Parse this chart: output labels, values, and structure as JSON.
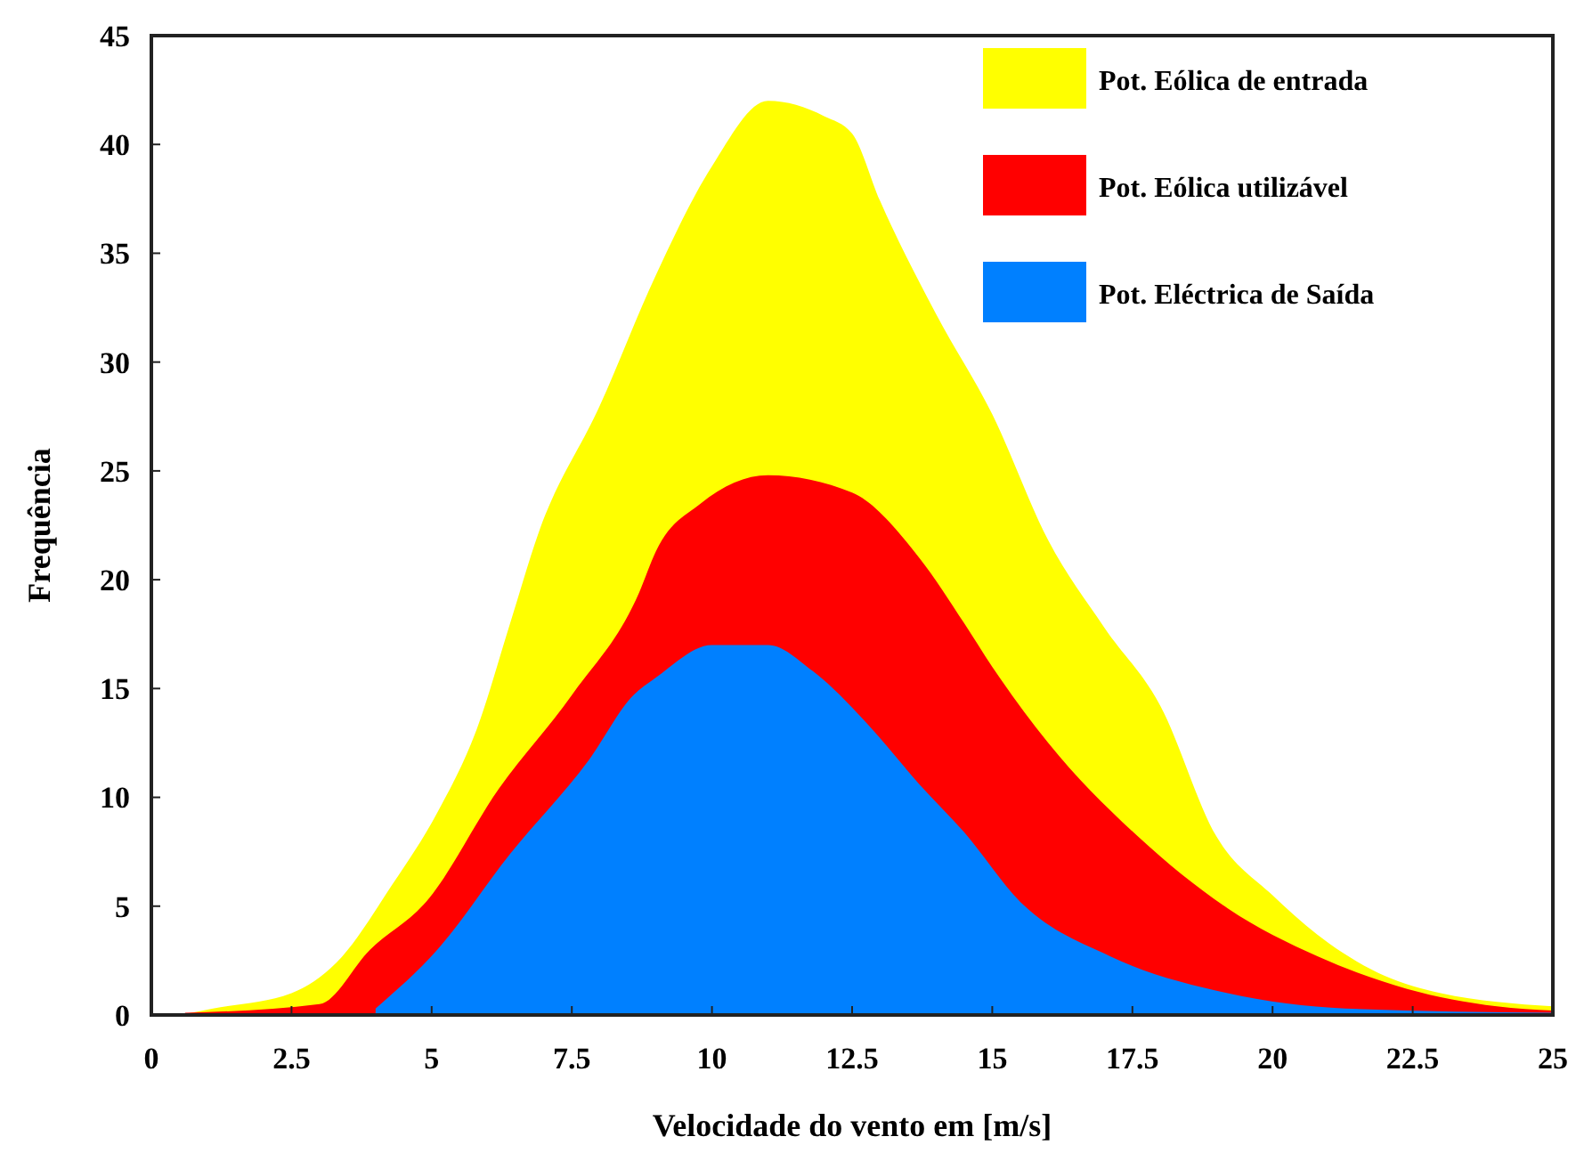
{
  "chart_data": {
    "type": "area",
    "xlabel": "Velocidade do vento em [m/s]",
    "ylabel": "Frequência",
    "xlim": [
      0,
      25
    ],
    "ylim": [
      0,
      45
    ],
    "xticks": [
      0,
      2.5,
      5,
      7.5,
      10,
      12.5,
      15,
      17.5,
      20,
      22.5,
      25
    ],
    "yticks": [
      0,
      5,
      10,
      15,
      20,
      25,
      30,
      35,
      40,
      45
    ],
    "grid": false,
    "legend": "top right",
    "series": [
      {
        "name": "Pot. Eólica de entrada",
        "color": "#ffff00",
        "x": [
          0.5,
          1.1,
          2.5,
          3.3,
          4.3,
          5.1,
          5.8,
          6.4,
          6.9,
          8,
          9,
          10,
          11,
          12,
          12.5,
          13,
          14,
          15,
          16,
          17,
          18,
          19,
          20,
          21,
          22,
          23,
          24,
          25
        ],
        "values": [
          0,
          0.3,
          1,
          2.4,
          6,
          9.3,
          13.1,
          18,
          22.1,
          28,
          34,
          39,
          42,
          41.3,
          40.5,
          37.4,
          32.2,
          27.6,
          21.8,
          17.8,
          14.2,
          8.2,
          5.5,
          3.3,
          1.8,
          1,
          0.6,
          0.4
        ]
      },
      {
        "name": "Pot. Eólica utilizável",
        "color": "#ff0000",
        "x": [
          0.6,
          3,
          3.9,
          4.9,
          6.2,
          7.5,
          8.7,
          9,
          9.8,
          11,
          12.5,
          13.7,
          14.5,
          15,
          16,
          17.6,
          19.2,
          20.8,
          22.4,
          24,
          25
        ],
        "values": [
          0.1,
          0.5,
          3,
          5.2,
          10.4,
          14.7,
          19.4,
          21.3,
          23.5,
          24.8,
          24,
          21,
          18,
          16,
          12.5,
          8.2,
          4.9,
          2.7,
          1.2,
          0.4,
          0.2
        ]
      },
      {
        "name": "Pot. Eléctrica de Saída",
        "color": "#0080ff",
        "x": [
          4,
          5.1,
          6.4,
          7.8,
          8.6,
          9,
          10,
          11,
          11.8,
          12.8,
          13.7,
          14.5,
          15.5,
          17.1,
          19.2,
          21.3,
          25
        ],
        "values": [
          0.3,
          3,
          7.4,
          11.7,
          14.7,
          15.5,
          17,
          17,
          15.8,
          13.3,
          10.6,
          8.4,
          5.2,
          2.7,
          1,
          0.3,
          0.1
        ]
      }
    ]
  }
}
